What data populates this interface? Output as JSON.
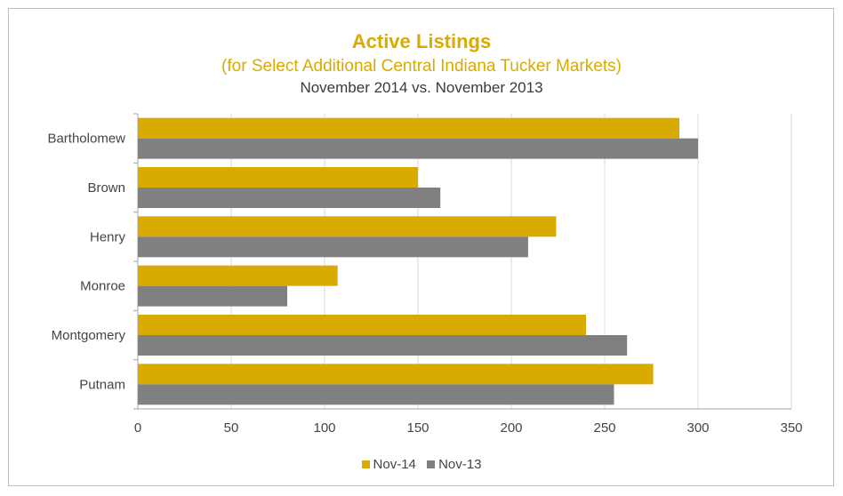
{
  "chart_data": {
    "type": "bar",
    "orientation": "horizontal",
    "title": "Active Listings",
    "subtitle": "(for Select Additional Central Indiana Tucker Markets)",
    "subtitle2": "November 2014 vs. November 2013",
    "categories": [
      "Bartholomew",
      "Brown",
      "Henry",
      "Monroe",
      "Montgomery",
      "Putnam"
    ],
    "series": [
      {
        "name": "Nov-14",
        "color": "#d9aa00",
        "values": [
          290,
          150,
          224,
          107,
          240,
          276
        ]
      },
      {
        "name": "Nov-13",
        "color": "#808080",
        "values": [
          300,
          162,
          209,
          80,
          262,
          255
        ]
      }
    ],
    "xlim": [
      0,
      350
    ],
    "xticks": [
      0,
      50,
      100,
      150,
      200,
      250,
      300,
      350
    ],
    "grid": true,
    "legend_position": "bottom"
  }
}
